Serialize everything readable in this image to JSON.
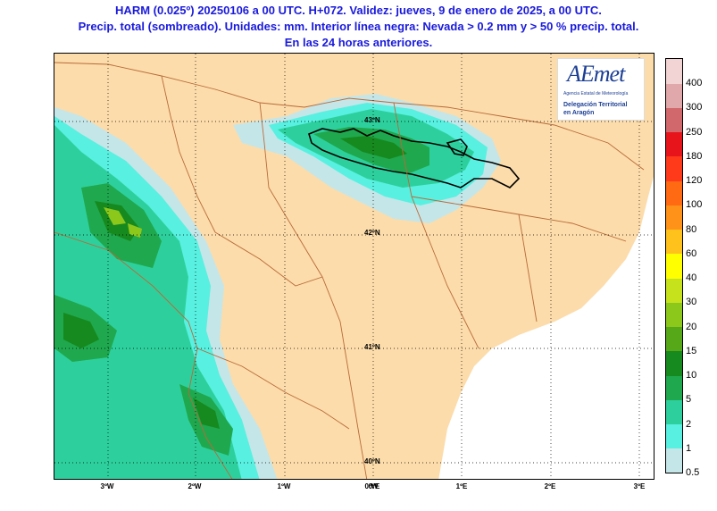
{
  "header": {
    "line1": "HARM (0.025º) 20250106 a 00 UTC. H+072. Validez: jueves, 9 de enero de 2025, a 00 UTC.",
    "line2": "Precip. total (sombreado). Unidades: mm. Interior línea negra: Nevada > 0.2 mm y > 50 % precip. total.",
    "line3": "En las 24 horas anteriores."
  },
  "logo": {
    "brand": "AEmet",
    "agency": "Agencia Estatal de Meteorología",
    "delegation_line1": "Delegación Territorial",
    "delegation_line2": "en Aragón"
  },
  "map": {
    "lat_labels": [
      "43ºN",
      "42ºN",
      "41ºN",
      "40ºN"
    ],
    "lon_labels": [
      "3ºW",
      "2ºW",
      "1ºW",
      "0ºW",
      "0ºE",
      "1ºE",
      "2ºE",
      "3ºE"
    ],
    "colors": {
      "land": "#fcdcaa",
      "sea": "#ffffff",
      "border": "#b96a3a"
    }
  },
  "legend": {
    "unit": "mm",
    "levels": [
      {
        "label": "0.5",
        "color": "#c5e6e8"
      },
      {
        "label": "1",
        "color": "#58f0e0"
      },
      {
        "label": "2",
        "color": "#2dd09c"
      },
      {
        "label": "5",
        "color": "#1fa84e"
      },
      {
        "label": "10",
        "color": "#168a1e"
      },
      {
        "label": "15",
        "color": "#56a818"
      },
      {
        "label": "20",
        "color": "#8cc81c"
      },
      {
        "label": "30",
        "color": "#c6e21c"
      },
      {
        "label": "40",
        "color": "#ffff00"
      },
      {
        "label": "60",
        "color": "#ffc21c"
      },
      {
        "label": "80",
        "color": "#ff9218"
      },
      {
        "label": "100",
        "color": "#ff6a12"
      },
      {
        "label": "120",
        "color": "#ff3a1a"
      },
      {
        "label": "180",
        "color": "#e8141c"
      },
      {
        "label": "250",
        "color": "#d0686c"
      },
      {
        "label": "300",
        "color": "#e0a8aa"
      },
      {
        "label": "400",
        "color": "#f2d4d4"
      }
    ],
    "top_label": "400"
  }
}
